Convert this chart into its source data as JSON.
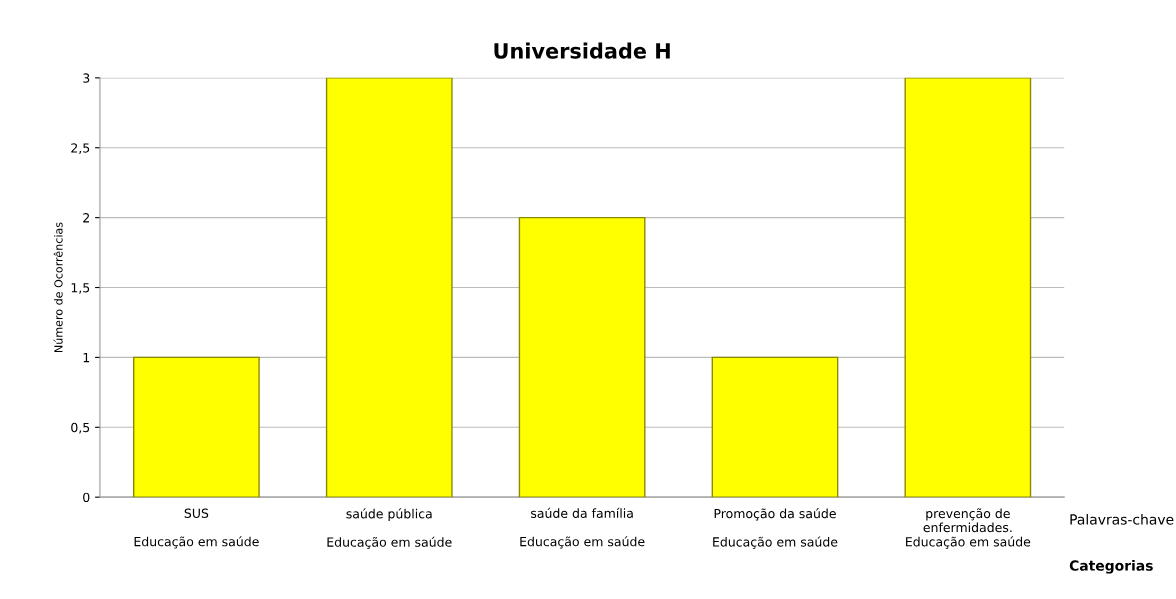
{
  "chart_data": {
    "type": "bar",
    "title": "Universidade H",
    "ylabel": "Número de Ocorrências",
    "categories": [
      "SUS\n\nEducação em saúde",
      "saúde pública\n\nEducação em saúde",
      "saúde da família\n\nEducação em saúde",
      "Promoção da saúde\n\nEducação em saúde",
      "prevenção de\nenfermidades.\nEducação em saúde"
    ],
    "values": [
      1,
      3,
      2,
      1,
      3
    ],
    "color": "#ffff00",
    "ylim": [
      0,
      3
    ],
    "yticks": [
      {
        "value": 0,
        "label": "0"
      },
      {
        "value": 0.5,
        "label": "0,5"
      },
      {
        "value": 1,
        "label": "1"
      },
      {
        "value": 1.5,
        "label": "1,5"
      },
      {
        "value": 2,
        "label": "2"
      },
      {
        "value": 2.5,
        "label": "2,5"
      },
      {
        "value": 3,
        "label": "3"
      }
    ],
    "grid": "y",
    "annotations": [
      "Palavras-chave",
      "Categorias"
    ]
  }
}
